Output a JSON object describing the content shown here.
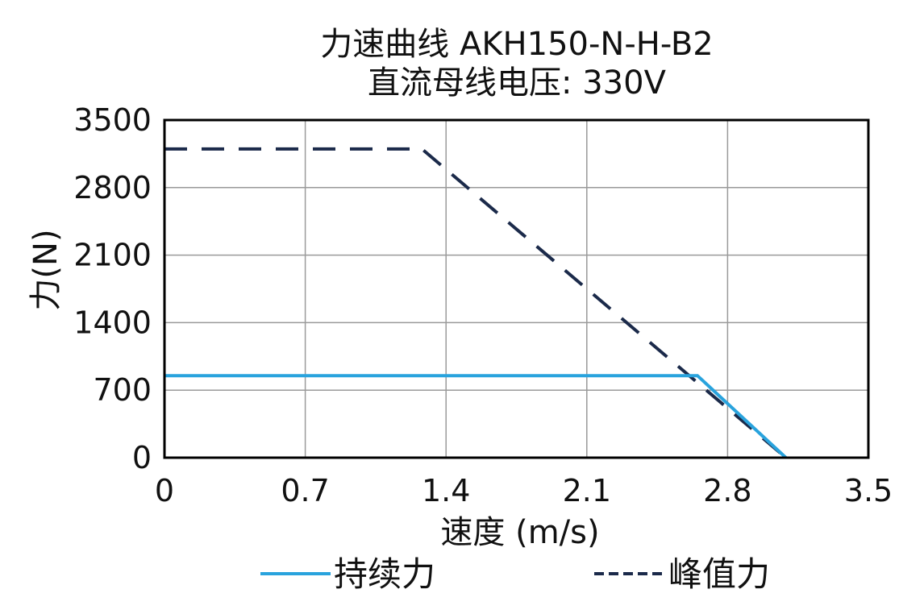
{
  "chart_data": {
    "type": "line",
    "title": "力速曲线 AKH150-N-H-B2",
    "subtitle": "直流母线电压: 330V",
    "xlabel": "速度 (m/s)",
    "ylabel": "力(N)",
    "xlim": [
      0,
      3.5
    ],
    "ylim": [
      0,
      3500
    ],
    "xticks": [
      "0",
      "0.7",
      "1.4",
      "2.1",
      "2.8",
      "3.5"
    ],
    "yticks": [
      "0",
      "700",
      "1400",
      "2100",
      "2800",
      "3500"
    ],
    "grid": true,
    "legend_position": "bottom",
    "series": [
      {
        "name": "持续力",
        "color": "#29a3dd",
        "dash": "solid",
        "x": [
          0,
          2.65,
          3.09
        ],
        "y": [
          850,
          850,
          0
        ]
      },
      {
        "name": "峰值力",
        "color": "#1b2a4a",
        "dash": "dashed",
        "x": [
          0,
          1.28,
          3.09
        ],
        "y": [
          3200,
          3200,
          0
        ]
      }
    ]
  }
}
